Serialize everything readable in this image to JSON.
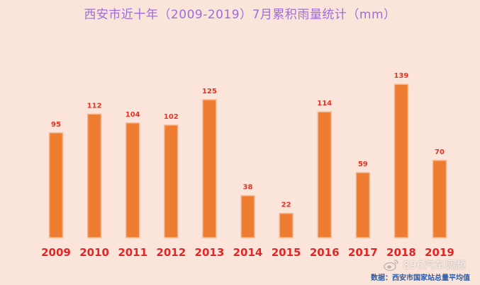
{
  "chart_data": {
    "type": "bar",
    "title": "西安市近十年（2009-2019）7月累积雨量统计（mm）",
    "categories": [
      "2009",
      "2010",
      "2011",
      "2012",
      "2013",
      "2014",
      "2015",
      "2016",
      "2017",
      "2018",
      "2019"
    ],
    "values": [
      95,
      112,
      104,
      102,
      125,
      38,
      22,
      114,
      59,
      139,
      70
    ],
    "data_labels": [
      "95",
      "112",
      "104",
      "102",
      "125",
      "38",
      "22",
      "114",
      "59",
      "139",
      "70"
    ],
    "xlabel": "",
    "ylabel": "",
    "ylim": [
      0,
      150
    ],
    "grid": false,
    "legend": "none"
  },
  "source_note": "数据：西安市国家站总量平均值",
  "watermark": {
    "text": "896汽车调频",
    "icon": "weibo-icon"
  },
  "colors": {
    "background": "#fbe5da",
    "bar": "#ee7d31",
    "bar_highlight": "#f7b992",
    "title": "#9b6ed8",
    "value_label": "#e53222",
    "year_label": "#e02626",
    "source_note": "#2a5aa8"
  }
}
